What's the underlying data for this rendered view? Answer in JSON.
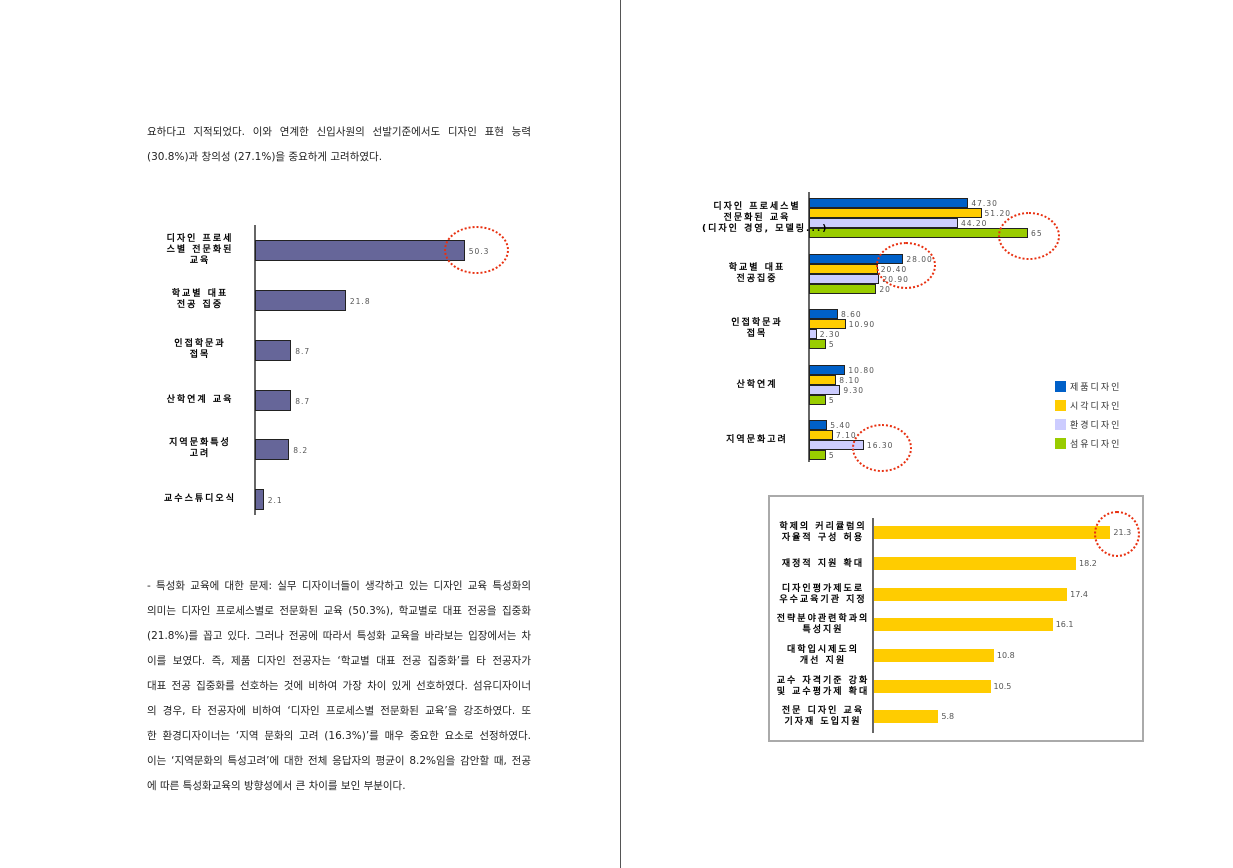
{
  "text_top": [
    "요하다고 지적되었다. 이와 연계한 신입사원의 선발기준에서도 디자인 표현 능력",
    "(30.8%)과 창의성 (27.1%)을 중요하게 고려하였다."
  ],
  "text_bottom": [
    "- 특성화 교육에 대한 문제: 실무 디자이너들이 생각하고 있는 디자인 교육 특성화의",
    "의미는 디자인 프로세스별로 전문화된 교육 (50.3%), 학교별로 대표 전공을 집중화",
    "(21.8%)를 꼽고 있다. 그러나 전공에 따라서 특성화 교육을 바라보는 입장에서는 차",
    "이를 보였다. 즉, 제품 디자인 전공자는 ‘학교별 대표 전공 집중화’를 타 전공자가",
    "대표 전공 집중화를 선호하는 것에 비하여 가장 차이 있게 선호하였다. 섬유디자이너",
    "의 경우, 타 전공자에 비하여 ‘디자인 프로세스별 전문화된 교육’을 강조하였다. 또",
    "한 환경디자이너는 ‘지역 문화의 고려 (16.3%)’를 매우 중요한 요소로 선정하였다.",
    "이는 ‘지역문화의 특성고려’에 대한 전체 응답자의 평균이 8.2%임을 감안할 때, 전공",
    "에 따른 특성화교육의 방향성에서 큰 차이를 보인 부분이다."
  ],
  "chart_data": [
    {
      "type": "bar",
      "orientation": "horizontal",
      "categories": [
        "디자인 프로세스별 전문화된 교육",
        "학교별 대표 전공 집중",
        "인접학문과 접목",
        "산학연계 교육",
        "지역문화특성 고려",
        "교수스튜디오식"
      ],
      "values": [
        50.3,
        21.8,
        8.7,
        8.7,
        8.2,
        2.1
      ],
      "value_labels": [
        "50.3",
        "21.8",
        "8.7",
        "8.7",
        "8.2",
        "2.1"
      ],
      "color": "#666699",
      "highlight": "50.3"
    },
    {
      "type": "bar",
      "orientation": "horizontal",
      "categories": [
        "디자인 프로세스별 전문화된 교육 (디자인 경영, 모델링...)",
        "학교별 대표 전공집중",
        "인접학문과 접목",
        "산학연계",
        "지역문화고려"
      ],
      "series": [
        {
          "name": "제품디자인",
          "color": "#0060c8",
          "values": [
            47.3,
            28.0,
            8.6,
            10.8,
            5.4
          ],
          "labels": [
            "47.30",
            "28.00",
            "8.60",
            "10.80",
            "5.40"
          ]
        },
        {
          "name": "시각디자인",
          "color": "#ffcc00",
          "values": [
            51.2,
            20.4,
            10.9,
            8.1,
            7.1
          ],
          "labels": [
            "51.20",
            "20.40",
            "10.90",
            "8.10",
            "7.10"
          ]
        },
        {
          "name": "환경디자인",
          "color": "#ccccff",
          "values": [
            44.2,
            20.9,
            2.3,
            9.3,
            16.3
          ],
          "labels": [
            "44.20",
            "20.90",
            "2.30",
            "9.30",
            "16.30"
          ]
        },
        {
          "name": "섬유디자인",
          "color": "#99cc00",
          "values": [
            65,
            20,
            5,
            5,
            5
          ],
          "labels": [
            "65",
            "20",
            "5",
            "5",
            "5"
          ]
        }
      ],
      "legend": "right"
    },
    {
      "type": "bar",
      "orientation": "horizontal",
      "categories": [
        "학제의 커리큘럼의 자율적 구성 허용",
        "재정적 지원 확대",
        "디자인평가제도로 우수교육기관 지정",
        "전략분야관련학과의 특성지원",
        "대학입시제도의 개선 지원",
        "교수 자격기준 강화 및 교수평가제 확대",
        "전문 디자인 교육 기자재 도입지원"
      ],
      "values": [
        21.3,
        18.2,
        17.4,
        16.1,
        10.8,
        10.5,
        5.8
      ],
      "value_labels": [
        "21.3",
        "18.2",
        "17.4",
        "16.1",
        "10.8",
        "10.5",
        "5.8"
      ],
      "color": "#ffcc00"
    }
  ],
  "chart1_label_lines": [
    [
      "디자인 프로세",
      "스별 전문화된",
      "교육"
    ],
    [
      "학교별 대표",
      "전공 집중"
    ],
    [
      "인접학문과",
      "접목"
    ],
    [
      "산학연계 교육"
    ],
    [
      "지역문화특성",
      "고려"
    ],
    [
      "교수스튜디오식"
    ]
  ],
  "chart2_label_lines": [
    [
      "디자인 프로세스별",
      "전문화된 교육",
      "(디자인 경영, 모델링...)"
    ],
    [
      "학교별 대표",
      "전공집중"
    ],
    [
      "인접학문과",
      "접목"
    ],
    [
      "산학연계"
    ],
    [
      "지역문화고려"
    ]
  ],
  "chart3_label_lines": [
    [
      "학제의 커리큘럼의",
      "자율적 구성 허용"
    ],
    [
      "재정적 지원 확대"
    ],
    [
      "디자인평가제도로",
      "우수교육기관 지정"
    ],
    [
      "전략분야관련학과의",
      "특성지원"
    ],
    [
      "대학입시제도의",
      "개선 지원"
    ],
    [
      "교수 자격기준 강화",
      "및 교수평가제 확대"
    ],
    [
      "전문 디자인 교육",
      "기자재 도입지원"
    ]
  ]
}
